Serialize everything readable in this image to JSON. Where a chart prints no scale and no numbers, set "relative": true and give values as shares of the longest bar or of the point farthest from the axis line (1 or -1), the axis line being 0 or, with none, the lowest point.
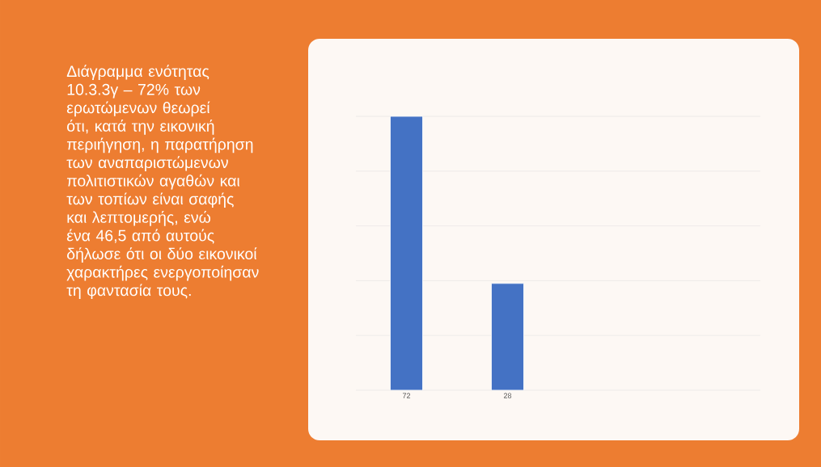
{
  "chart_data": {
    "type": "bar",
    "title": "Διάγραμμα ενότητας 10.3.3γ – 72% των ερωτώμενων θεωρεί ότι, κατά την εικονική περιήγηση,  η παρατήρηση των αναπαριστώμενων πολιτιστικών αγαθών και των τοπίων είναι σαφής και λεπτομερής, ενώ ένα 46,5 από αυτούς δήλωσε ότι οι δύο εικονικοί χαρακτήρες ενεργοποίησαν τη φαντασία τους.",
    "categories": [
      "72",
      "28"
    ],
    "values": [
      1,
      0.39
    ],
    "relative": true,
    "color": "#4472c4",
    "grid": "y"
  }
}
